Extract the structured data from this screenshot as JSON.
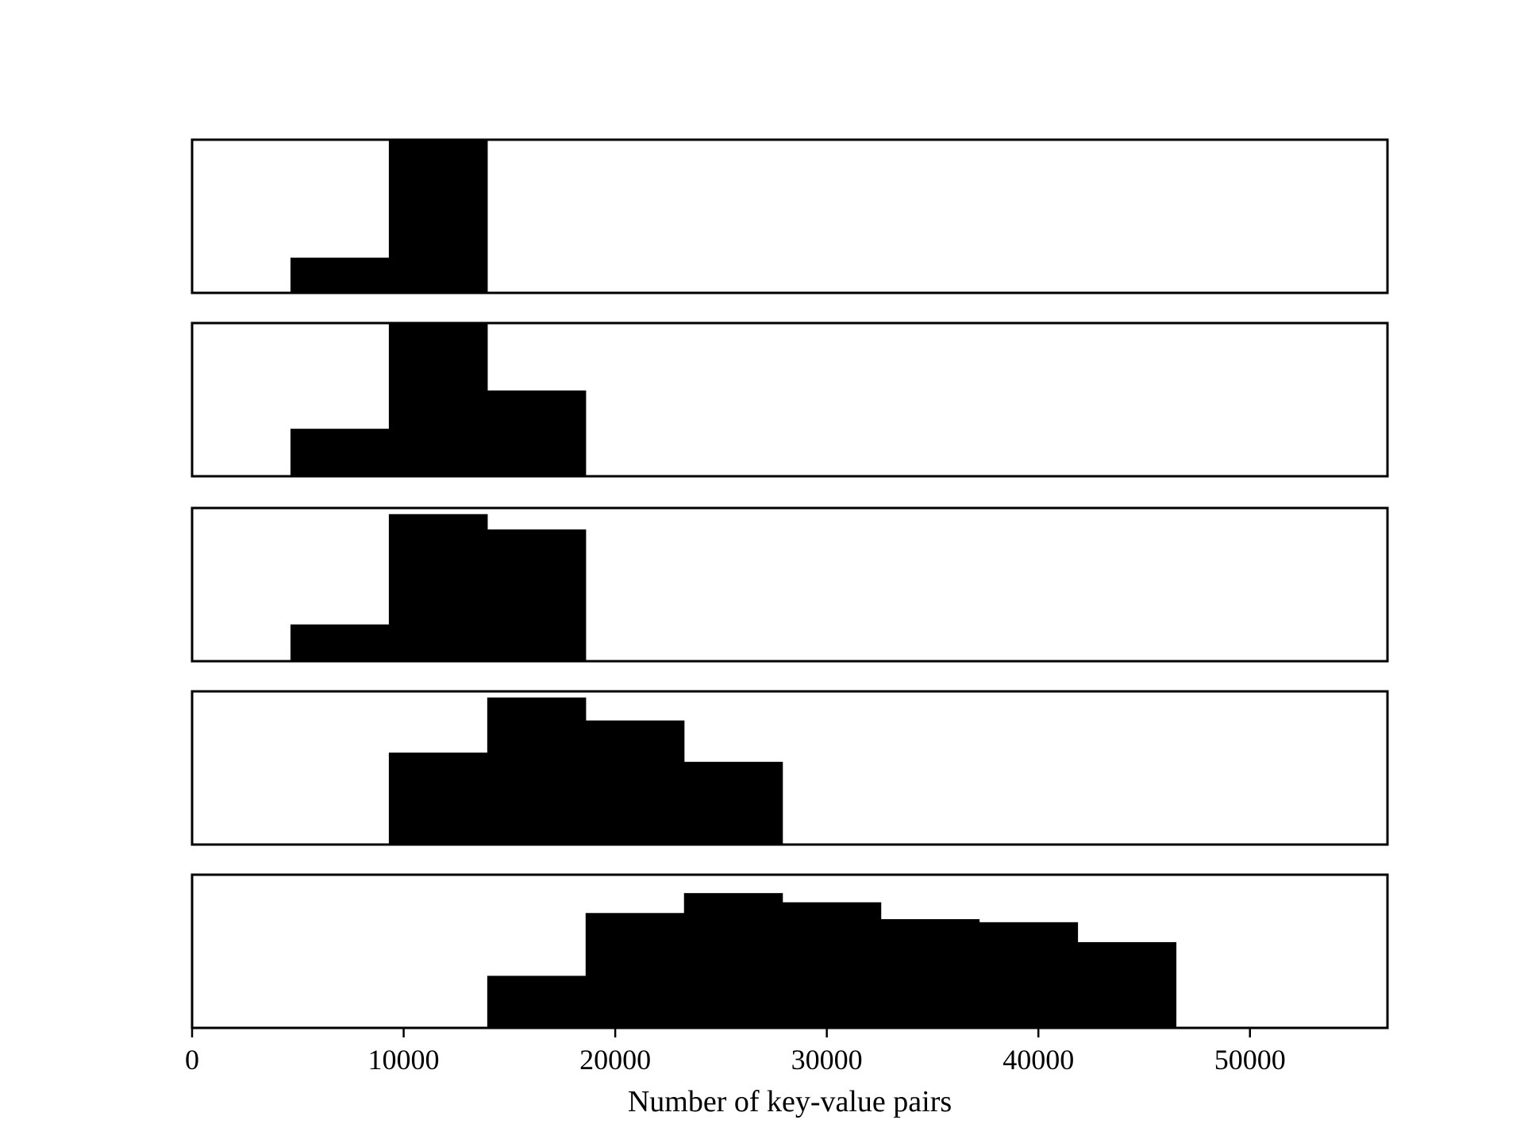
{
  "chart_data": {
    "type": "bar",
    "subtype": "stacked-histogram-panels",
    "xlabel": "Number of key-value pairs",
    "xlim": [
      0,
      56500
    ],
    "xticks": [
      0,
      10000,
      20000,
      30000,
      40000,
      50000
    ],
    "xtick_labels": [
      "0",
      "10000",
      "20000",
      "30000",
      "40000",
      "50000"
    ],
    "bar_color": "#000000",
    "shared_x": true,
    "yticks_visible": false,
    "grid": false,
    "panels": [
      {
        "bins": [
          {
            "x0": 4650,
            "x1": 9300,
            "height": 0.23
          },
          {
            "x0": 9300,
            "x1": 13950,
            "height": 1.0
          }
        ]
      },
      {
        "bins": [
          {
            "x0": 4650,
            "x1": 9300,
            "height": 0.31
          },
          {
            "x0": 9300,
            "x1": 13950,
            "height": 1.0
          },
          {
            "x0": 13950,
            "x1": 18600,
            "height": 0.56
          }
        ]
      },
      {
        "bins": [
          {
            "x0": 4650,
            "x1": 9300,
            "height": 0.24
          },
          {
            "x0": 9300,
            "x1": 13950,
            "height": 0.96
          },
          {
            "x0": 13950,
            "x1": 18600,
            "height": 0.86
          }
        ]
      },
      {
        "bins": [
          {
            "x0": 9300,
            "x1": 13950,
            "height": 0.6
          },
          {
            "x0": 13950,
            "x1": 18600,
            "height": 0.96
          },
          {
            "x0": 18600,
            "x1": 23250,
            "height": 0.81
          },
          {
            "x0": 23250,
            "x1": 27900,
            "height": 0.54
          }
        ]
      },
      {
        "bins": [
          {
            "x0": 13950,
            "x1": 18600,
            "height": 0.34
          },
          {
            "x0": 18600,
            "x1": 23250,
            "height": 0.75
          },
          {
            "x0": 23250,
            "x1": 27900,
            "height": 0.88
          },
          {
            "x0": 27900,
            "x1": 32550,
            "height": 0.82
          },
          {
            "x0": 32550,
            "x1": 37200,
            "height": 0.71
          },
          {
            "x0": 37200,
            "x1": 41850,
            "height": 0.69
          },
          {
            "x0": 41850,
            "x1": 46500,
            "height": 0.56
          }
        ]
      }
    ]
  }
}
